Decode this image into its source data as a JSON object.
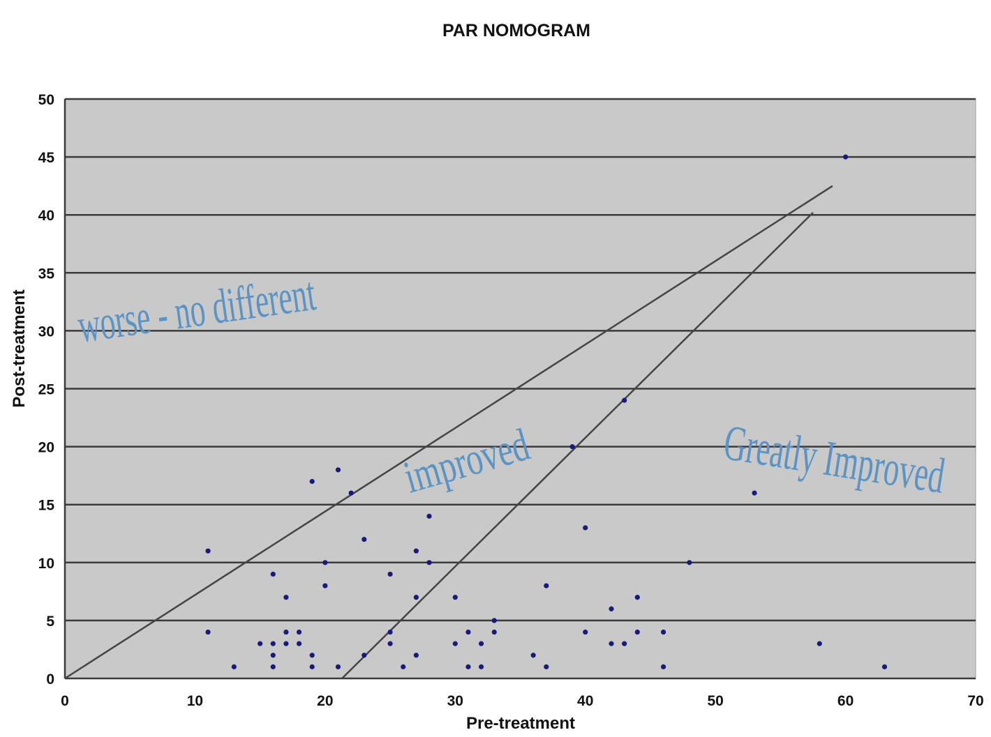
{
  "chart_data": {
    "type": "scatter",
    "title": "PAR NOMOGRAM",
    "xlabel": "Pre-treatment",
    "ylabel": "Post-treatment",
    "xlim": [
      0,
      70
    ],
    "ylim": [
      0,
      50
    ],
    "x_ticks": [
      0,
      10,
      20,
      30,
      40,
      50,
      60,
      70
    ],
    "y_ticks": [
      0,
      5,
      10,
      15,
      20,
      25,
      30,
      35,
      40,
      45,
      50
    ],
    "grid": "horizontal",
    "colors": {
      "plot_background": "#c9c9c9",
      "gridline": "#3a3a3a",
      "point": "#1a1a7a",
      "boundary_line": "#444444",
      "region_label": "#5b93c4"
    },
    "points": [
      {
        "x": 11,
        "y": 11
      },
      {
        "x": 11,
        "y": 4
      },
      {
        "x": 13,
        "y": 1
      },
      {
        "x": 15,
        "y": 3
      },
      {
        "x": 16,
        "y": 9
      },
      {
        "x": 16,
        "y": 3
      },
      {
        "x": 16,
        "y": 2
      },
      {
        "x": 16,
        "y": 1
      },
      {
        "x": 17,
        "y": 7
      },
      {
        "x": 17,
        "y": 4
      },
      {
        "x": 17,
        "y": 3
      },
      {
        "x": 18,
        "y": 4
      },
      {
        "x": 18,
        "y": 3
      },
      {
        "x": 19,
        "y": 17
      },
      {
        "x": 19,
        "y": 2
      },
      {
        "x": 19,
        "y": 1
      },
      {
        "x": 20,
        "y": 10
      },
      {
        "x": 20,
        "y": 8
      },
      {
        "x": 21,
        "y": 18
      },
      {
        "x": 21,
        "y": 1
      },
      {
        "x": 22,
        "y": 16
      },
      {
        "x": 23,
        "y": 12
      },
      {
        "x": 23,
        "y": 2
      },
      {
        "x": 25,
        "y": 9
      },
      {
        "x": 25,
        "y": 4
      },
      {
        "x": 25,
        "y": 3
      },
      {
        "x": 26,
        "y": 1
      },
      {
        "x": 27,
        "y": 11
      },
      {
        "x": 27,
        "y": 7
      },
      {
        "x": 27,
        "y": 2
      },
      {
        "x": 28,
        "y": 14
      },
      {
        "x": 28,
        "y": 10
      },
      {
        "x": 30,
        "y": 7
      },
      {
        "x": 30,
        "y": 3
      },
      {
        "x": 31,
        "y": 4
      },
      {
        "x": 31,
        "y": 1
      },
      {
        "x": 32,
        "y": 3
      },
      {
        "x": 32,
        "y": 1
      },
      {
        "x": 33,
        "y": 5
      },
      {
        "x": 33,
        "y": 4
      },
      {
        "x": 36,
        "y": 2
      },
      {
        "x": 37,
        "y": 8
      },
      {
        "x": 37,
        "y": 1
      },
      {
        "x": 39,
        "y": 20
      },
      {
        "x": 40,
        "y": 13
      },
      {
        "x": 40,
        "y": 4
      },
      {
        "x": 42,
        "y": 6
      },
      {
        "x": 42,
        "y": 3
      },
      {
        "x": 43,
        "y": 24
      },
      {
        "x": 43,
        "y": 3
      },
      {
        "x": 44,
        "y": 7
      },
      {
        "x": 44,
        "y": 4
      },
      {
        "x": 46,
        "y": 4
      },
      {
        "x": 46,
        "y": 1
      },
      {
        "x": 48,
        "y": 10
      },
      {
        "x": 53,
        "y": 16
      },
      {
        "x": 58,
        "y": 3
      },
      {
        "x": 60,
        "y": 45
      },
      {
        "x": 63,
        "y": 1
      }
    ],
    "boundary_lines": [
      {
        "from": [
          0,
          0
        ],
        "to": [
          59,
          42.5
        ]
      },
      {
        "from": [
          21.3,
          0
        ],
        "to": [
          57.5,
          40.2
        ]
      }
    ],
    "annotations": [
      {
        "text": "worse - no different",
        "x": 1.2,
        "y": 29
      },
      {
        "text": "improved",
        "x": 26.5,
        "y": 16
      },
      {
        "text": "Greatly Improved",
        "x": 50.5,
        "y": 19
      }
    ]
  }
}
